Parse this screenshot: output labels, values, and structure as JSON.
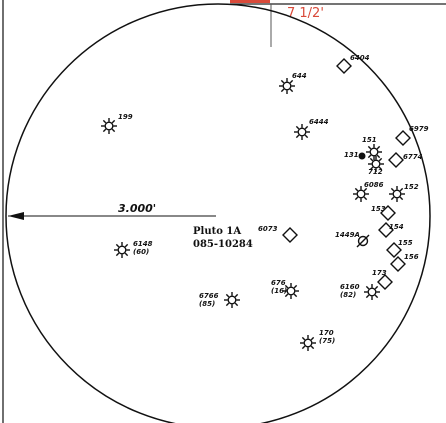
{
  "header": {
    "dimension_text": "7 1/2'",
    "accent_color": "#d94a3a"
  },
  "diagram": {
    "radius_label": "3.000'",
    "center_label_line1": "Pluto 1A",
    "center_label_line2": "085-10284"
  },
  "symbols": [
    {
      "id": "sym-6404",
      "kind": "open-diamond",
      "label": "6404"
    },
    {
      "id": "sym-644",
      "kind": "sun",
      "label": "644"
    },
    {
      "id": "sym-199",
      "kind": "sun",
      "label": "199"
    },
    {
      "id": "sym-6444",
      "kind": "sun",
      "label": "6444"
    },
    {
      "id": "sym-6979",
      "kind": "open-diamond",
      "label": "6979"
    },
    {
      "id": "sym-151",
      "kind": "sun",
      "label": "151"
    },
    {
      "id": "sym-131",
      "kind": "dot",
      "label": "131"
    },
    {
      "id": "sym-6774",
      "kind": "open-diamond",
      "label": "6774"
    },
    {
      "id": "sym-712",
      "kind": "sun",
      "label": "712"
    },
    {
      "id": "sym-6086",
      "kind": "sun",
      "label": "6086"
    },
    {
      "id": "sym-152",
      "kind": "sun",
      "label": "152"
    },
    {
      "id": "sym-153",
      "kind": "open-diamond",
      "label": "153"
    },
    {
      "id": "sym-6073",
      "kind": "open-diamond",
      "label": "6073"
    },
    {
      "id": "sym-1449a",
      "kind": "slash-circle",
      "label": "1449A"
    },
    {
      "id": "sym-154",
      "kind": "open-diamond",
      "label": "154"
    },
    {
      "id": "sym-6148",
      "kind": "sun",
      "label": "6148",
      "sub": "(60)"
    },
    {
      "id": "sym-155",
      "kind": "open-diamond",
      "label": "155"
    },
    {
      "id": "sym-6766",
      "kind": "sun",
      "label": "6766",
      "sub": "(85)"
    },
    {
      "id": "sym-676",
      "kind": "sun",
      "label": "676",
      "sub": "(16)"
    },
    {
      "id": "sym-6160",
      "kind": "sun",
      "label": "6160",
      "sub": "(82)"
    },
    {
      "id": "sym-170",
      "kind": "sun",
      "label": "170",
      "sub": "(75)"
    },
    {
      "id": "sym-173",
      "kind": "open-diamond",
      "label": "173"
    },
    {
      "id": "sym-156",
      "kind": "open-diamond",
      "label": "156"
    }
  ]
}
